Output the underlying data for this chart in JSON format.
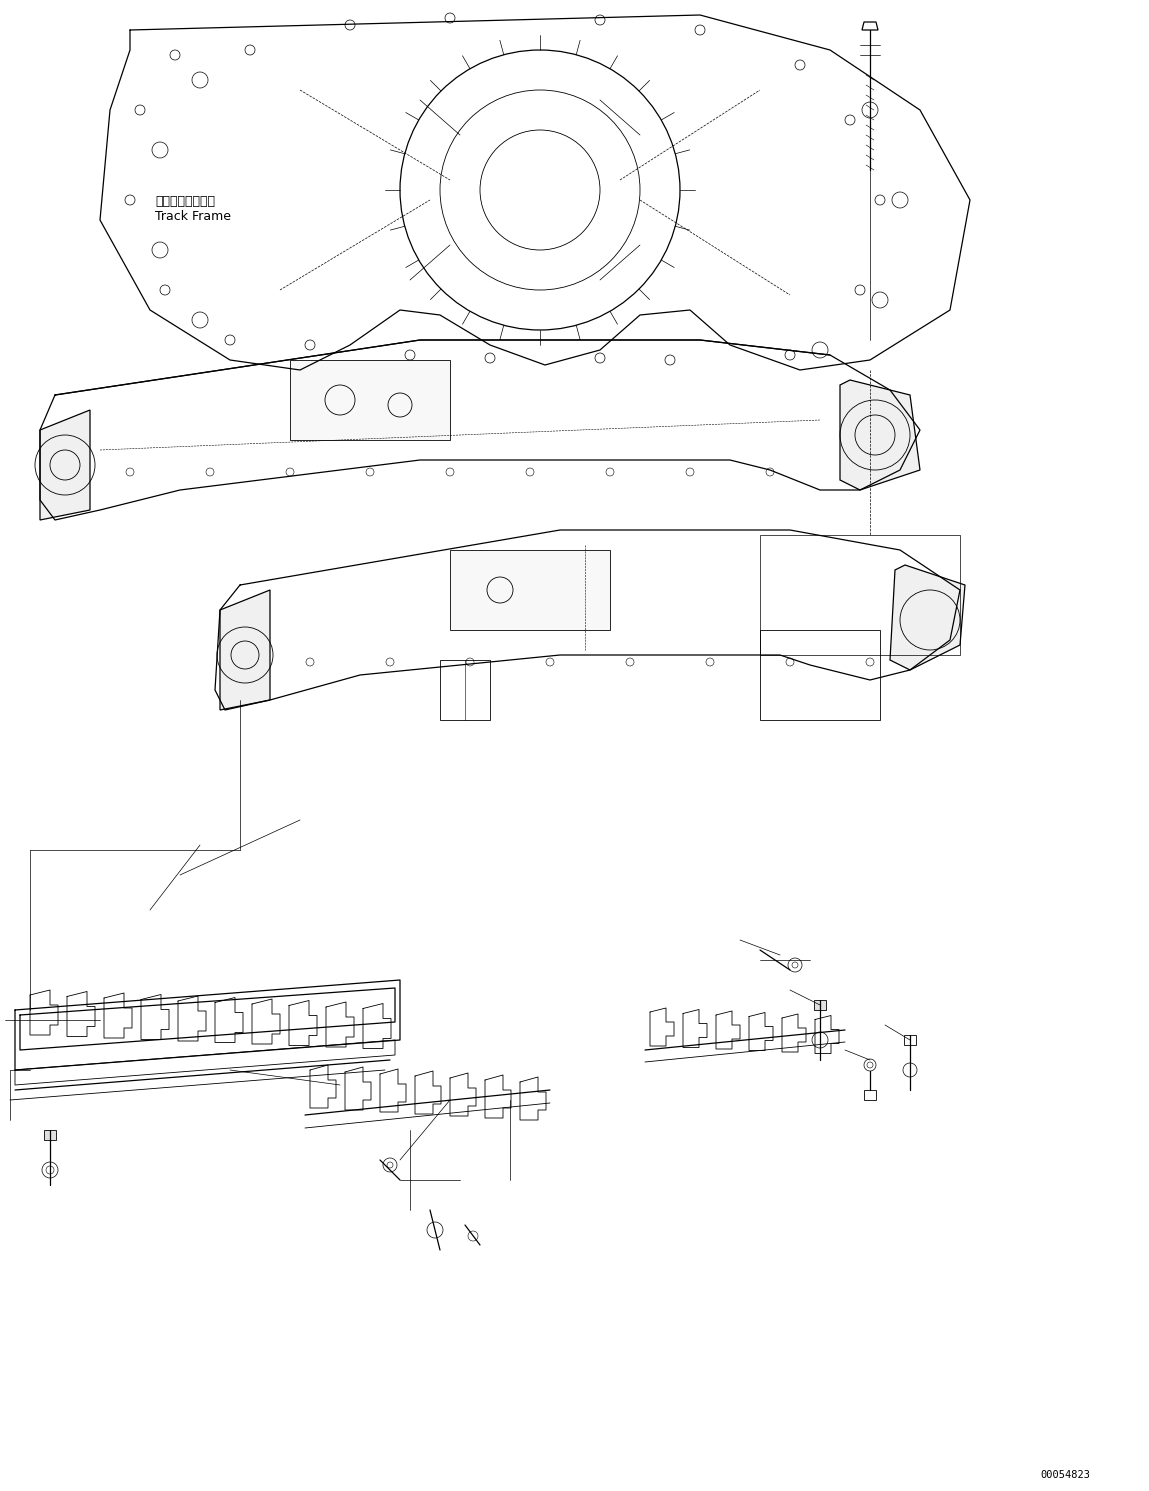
{
  "title": "",
  "background_color": "#ffffff",
  "line_color": "#000000",
  "text_color": "#000000",
  "label_japanese": "トラックフレーム",
  "label_english": "Track Frame",
  "part_number": "00054823",
  "fig_width": 11.49,
  "fig_height": 14.91,
  "dpi": 100
}
